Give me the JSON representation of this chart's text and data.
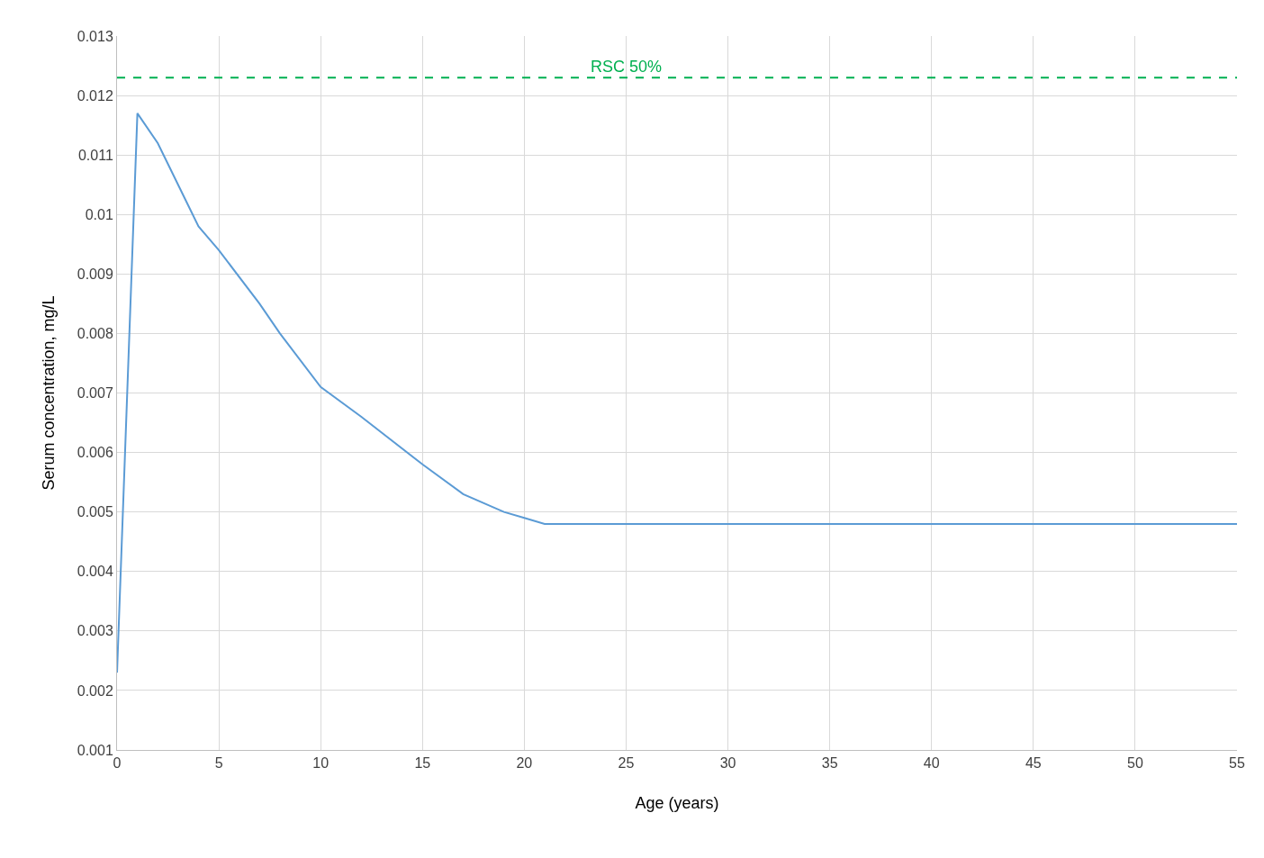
{
  "chart_data": {
    "type": "line",
    "xlabel": "Age (years)",
    "ylabel": "Serum concentration, mg/L",
    "x": [
      0,
      1,
      2,
      3,
      4,
      5,
      7,
      8,
      10,
      12,
      15,
      17,
      19,
      20,
      21,
      25,
      30,
      40,
      55
    ],
    "series": [
      {
        "color": "#5b9bd5",
        "values": [
          0.0023,
          0.0117,
          0.0112,
          0.0105,
          0.0098,
          0.0094,
          0.0085,
          0.008,
          0.0071,
          0.0066,
          0.0058,
          0.0053,
          0.005,
          0.0049,
          0.0048,
          0.0048,
          0.0048,
          0.0048,
          0.0048
        ]
      }
    ],
    "xlim": [
      0,
      55
    ],
    "xticks": [
      0,
      5,
      10,
      15,
      20,
      25,
      30,
      35,
      40,
      45,
      50,
      55
    ],
    "ylim": [
      0.001,
      0.013
    ],
    "yticks": [
      0.001,
      0.002,
      0.003,
      0.004,
      0.005,
      0.006,
      0.007,
      0.008,
      0.009,
      0.01,
      0.011,
      0.012,
      0.013
    ],
    "ref_lines": [
      {
        "axis": "y",
        "value": 0.0123,
        "label": "RSC 50%",
        "color": "#00b050",
        "line_style": "dashed"
      }
    ],
    "grid": true,
    "marker": "none",
    "line_style": "solid"
  }
}
